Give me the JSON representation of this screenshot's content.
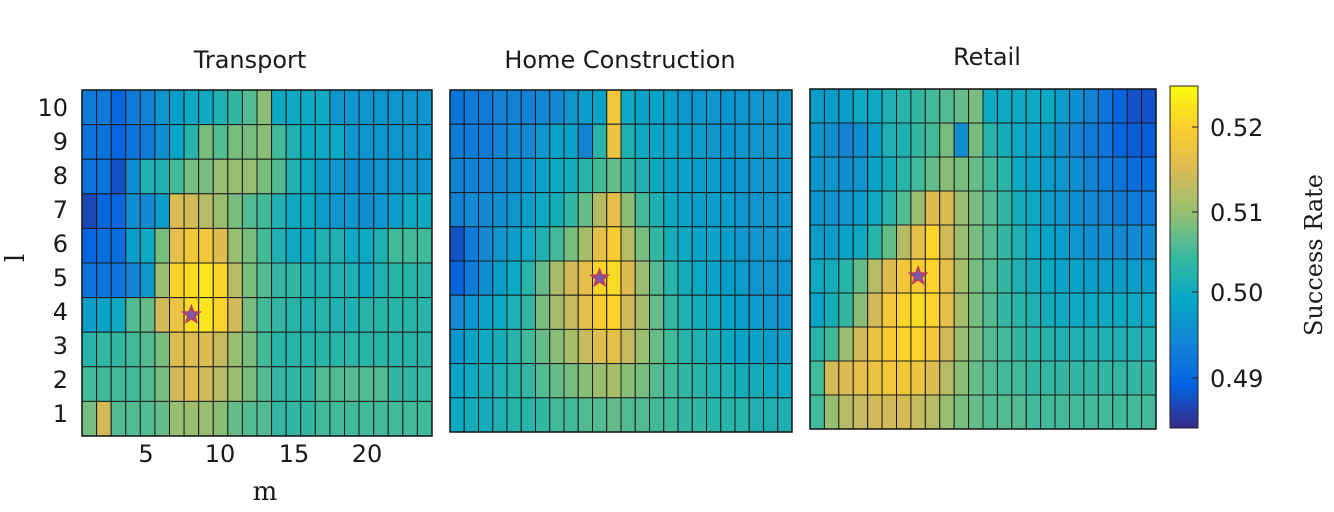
{
  "chart_data": {
    "type": "heatmap",
    "xlabel": "m",
    "ylabel": "l",
    "x_ticks": [
      "5",
      "10",
      "15",
      "20"
    ],
    "y_ticks": [
      "10",
      "9",
      "8",
      "7",
      "6",
      "5",
      "4",
      "3",
      "2",
      "1"
    ],
    "colorbar": {
      "label": "Success Rate",
      "ticks": [
        "0.52",
        "0.51",
        "0.50",
        "0.49"
      ],
      "range": [
        0.4845,
        0.5245
      ],
      "colormap": "parula"
    },
    "panels": [
      {
        "title": "Transport",
        "ncols": 24,
        "nrows": 10,
        "star": {
          "m": 8,
          "l": 4
        },
        "values": [
          [
            0.493,
            0.493,
            0.49,
            0.493,
            0.494,
            0.497,
            0.498,
            0.5,
            0.5,
            0.502,
            0.504,
            0.506,
            0.509,
            0.5,
            0.5,
            0.5,
            0.5,
            0.497,
            0.497,
            0.497,
            0.497,
            0.497,
            0.497,
            0.497
          ],
          [
            0.492,
            0.492,
            0.49,
            0.492,
            0.493,
            0.496,
            0.499,
            0.503,
            0.508,
            0.506,
            0.508,
            0.508,
            0.509,
            0.505,
            0.502,
            0.5,
            0.5,
            0.5,
            0.497,
            0.497,
            0.497,
            0.497,
            0.497,
            0.497
          ],
          [
            0.492,
            0.492,
            0.488,
            0.496,
            0.502,
            0.502,
            0.505,
            0.508,
            0.508,
            0.51,
            0.51,
            0.51,
            0.508,
            0.506,
            0.502,
            0.5,
            0.498,
            0.497,
            0.496,
            0.496,
            0.497,
            0.497,
            0.497,
            0.497
          ],
          [
            0.487,
            0.49,
            0.49,
            0.496,
            0.495,
            0.498,
            0.515,
            0.514,
            0.512,
            0.51,
            0.508,
            0.506,
            0.505,
            0.502,
            0.5,
            0.5,
            0.498,
            0.497,
            0.497,
            0.496,
            0.497,
            0.498,
            0.5,
            0.5
          ],
          [
            0.49,
            0.491,
            0.491,
            0.498,
            0.5,
            0.508,
            0.516,
            0.518,
            0.518,
            0.515,
            0.51,
            0.508,
            0.505,
            0.502,
            0.5,
            0.5,
            0.502,
            0.502,
            0.5,
            0.5,
            0.502,
            0.505,
            0.505,
            0.505
          ],
          [
            0.492,
            0.492,
            0.492,
            0.494,
            0.497,
            0.51,
            0.52,
            0.521,
            0.522,
            0.52,
            0.512,
            0.508,
            0.506,
            0.504,
            0.504,
            0.502,
            0.502,
            0.502,
            0.502,
            0.5,
            0.502,
            0.503,
            0.503,
            0.503
          ],
          [
            0.498,
            0.499,
            0.5,
            0.506,
            0.507,
            0.514,
            0.517,
            0.521,
            0.522,
            0.52,
            0.514,
            0.508,
            0.505,
            0.504,
            0.503,
            0.502,
            0.503,
            0.502,
            0.502,
            0.503,
            0.503,
            0.503,
            0.503,
            0.503
          ],
          [
            0.503,
            0.504,
            0.504,
            0.505,
            0.506,
            0.508,
            0.515,
            0.515,
            0.515,
            0.513,
            0.51,
            0.508,
            0.505,
            0.503,
            0.503,
            0.503,
            0.503,
            0.503,
            0.503,
            0.503,
            0.503,
            0.503,
            0.503,
            0.503
          ],
          [
            0.505,
            0.505,
            0.505,
            0.505,
            0.506,
            0.508,
            0.514,
            0.515,
            0.514,
            0.512,
            0.51,
            0.508,
            0.506,
            0.504,
            0.504,
            0.504,
            0.506,
            0.506,
            0.506,
            0.506,
            0.506,
            0.504,
            0.504,
            0.504
          ],
          [
            0.508,
            0.514,
            0.506,
            0.506,
            0.506,
            0.507,
            0.51,
            0.51,
            0.51,
            0.509,
            0.507,
            0.506,
            0.506,
            0.504,
            0.504,
            0.504,
            0.505,
            0.505,
            0.505,
            0.505,
            0.505,
            0.505,
            0.505,
            0.505
          ]
        ]
      },
      {
        "title": "Home Construction",
        "ncols": 24,
        "nrows": 10,
        "star": {
          "m": 11,
          "l": 5
        },
        "values": [
          [
            0.492,
            0.493,
            0.493,
            0.494,
            0.494,
            0.494,
            0.495,
            0.495,
            0.497,
            0.498,
            0.499,
            0.518,
            0.5,
            0.499,
            0.499,
            0.498,
            0.497,
            0.497,
            0.497,
            0.497,
            0.497,
            0.497,
            0.497,
            0.497
          ],
          [
            0.493,
            0.493,
            0.493,
            0.494,
            0.495,
            0.495,
            0.497,
            0.499,
            0.499,
            0.494,
            0.503,
            0.517,
            0.502,
            0.5,
            0.499,
            0.499,
            0.498,
            0.498,
            0.497,
            0.497,
            0.497,
            0.497,
            0.497,
            0.497
          ],
          [
            0.494,
            0.494,
            0.494,
            0.495,
            0.496,
            0.497,
            0.499,
            0.5,
            0.501,
            0.503,
            0.505,
            0.507,
            0.504,
            0.502,
            0.5,
            0.499,
            0.499,
            0.498,
            0.498,
            0.497,
            0.497,
            0.497,
            0.497,
            0.497
          ],
          [
            0.494,
            0.495,
            0.495,
            0.496,
            0.497,
            0.498,
            0.5,
            0.501,
            0.504,
            0.507,
            0.512,
            0.516,
            0.509,
            0.505,
            0.502,
            0.5,
            0.499,
            0.498,
            0.498,
            0.498,
            0.497,
            0.497,
            0.497,
            0.497
          ],
          [
            0.488,
            0.493,
            0.495,
            0.497,
            0.498,
            0.5,
            0.502,
            0.505,
            0.508,
            0.511,
            0.516,
            0.519,
            0.512,
            0.508,
            0.504,
            0.501,
            0.5,
            0.499,
            0.499,
            0.498,
            0.497,
            0.497,
            0.497,
            0.497
          ],
          [
            0.49,
            0.493,
            0.496,
            0.498,
            0.5,
            0.503,
            0.507,
            0.511,
            0.514,
            0.516,
            0.52,
            0.521,
            0.515,
            0.51,
            0.506,
            0.503,
            0.501,
            0.5,
            0.499,
            0.498,
            0.498,
            0.497,
            0.497,
            0.497
          ],
          [
            0.495,
            0.497,
            0.499,
            0.5,
            0.502,
            0.504,
            0.508,
            0.511,
            0.513,
            0.516,
            0.519,
            0.52,
            0.514,
            0.511,
            0.507,
            0.504,
            0.502,
            0.501,
            0.5,
            0.499,
            0.498,
            0.498,
            0.497,
            0.497
          ],
          [
            0.497,
            0.499,
            0.5,
            0.501,
            0.503,
            0.505,
            0.507,
            0.509,
            0.511,
            0.513,
            0.515,
            0.516,
            0.513,
            0.51,
            0.507,
            0.505,
            0.503,
            0.502,
            0.501,
            0.5,
            0.499,
            0.499,
            0.498,
            0.498
          ],
          [
            0.499,
            0.5,
            0.501,
            0.502,
            0.503,
            0.504,
            0.506,
            0.507,
            0.508,
            0.509,
            0.51,
            0.511,
            0.509,
            0.508,
            0.506,
            0.505,
            0.504,
            0.503,
            0.502,
            0.502,
            0.501,
            0.501,
            0.5,
            0.5
          ],
          [
            0.5,
            0.501,
            0.501,
            0.502,
            0.503,
            0.503,
            0.504,
            0.505,
            0.505,
            0.506,
            0.506,
            0.507,
            0.506,
            0.506,
            0.505,
            0.505,
            0.504,
            0.504,
            0.503,
            0.503,
            0.503,
            0.502,
            0.502,
            0.502
          ]
        ]
      },
      {
        "title": "Retail",
        "ncols": 24,
        "nrows": 10,
        "star": {
          "m": 8,
          "l": 5
        },
        "values": [
          [
            0.498,
            0.498,
            0.498,
            0.5,
            0.5,
            0.502,
            0.503,
            0.504,
            0.505,
            0.506,
            0.507,
            0.508,
            0.5,
            0.5,
            0.5,
            0.5,
            0.5,
            0.498,
            0.496,
            0.494,
            0.492,
            0.49,
            0.488,
            0.488
          ],
          [
            0.497,
            0.496,
            0.494,
            0.496,
            0.498,
            0.502,
            0.502,
            0.504,
            0.505,
            0.508,
            0.496,
            0.508,
            0.503,
            0.501,
            0.5,
            0.499,
            0.498,
            0.496,
            0.494,
            0.493,
            0.492,
            0.49,
            0.489,
            0.489
          ],
          [
            0.497,
            0.497,
            0.496,
            0.497,
            0.499,
            0.501,
            0.503,
            0.505,
            0.507,
            0.509,
            0.508,
            0.507,
            0.505,
            0.503,
            0.5,
            0.499,
            0.498,
            0.497,
            0.496,
            0.494,
            0.493,
            0.492,
            0.491,
            0.491
          ],
          [
            0.497,
            0.497,
            0.497,
            0.498,
            0.5,
            0.503,
            0.506,
            0.51,
            0.515,
            0.515,
            0.51,
            0.508,
            0.506,
            0.504,
            0.501,
            0.5,
            0.498,
            0.497,
            0.496,
            0.495,
            0.494,
            0.493,
            0.493,
            0.493
          ],
          [
            0.498,
            0.498,
            0.499,
            0.5,
            0.503,
            0.507,
            0.512,
            0.516,
            0.52,
            0.514,
            0.51,
            0.508,
            0.506,
            0.504,
            0.502,
            0.5,
            0.499,
            0.498,
            0.497,
            0.496,
            0.496,
            0.495,
            0.495,
            0.495
          ],
          [
            0.5,
            0.501,
            0.503,
            0.507,
            0.512,
            0.515,
            0.518,
            0.519,
            0.52,
            0.516,
            0.511,
            0.508,
            0.506,
            0.504,
            0.502,
            0.501,
            0.5,
            0.499,
            0.499,
            0.498,
            0.498,
            0.498,
            0.498,
            0.498
          ],
          [
            0.499,
            0.501,
            0.504,
            0.509,
            0.514,
            0.518,
            0.52,
            0.521,
            0.52,
            0.516,
            0.511,
            0.508,
            0.506,
            0.504,
            0.503,
            0.502,
            0.501,
            0.5,
            0.5,
            0.5,
            0.5,
            0.5,
            0.5,
            0.5
          ],
          [
            0.503,
            0.505,
            0.51,
            0.514,
            0.517,
            0.519,
            0.52,
            0.52,
            0.518,
            0.514,
            0.51,
            0.508,
            0.506,
            0.505,
            0.504,
            0.503,
            0.503,
            0.502,
            0.502,
            0.502,
            0.502,
            0.502,
            0.502,
            0.502
          ],
          [
            0.505,
            0.514,
            0.515,
            0.516,
            0.517,
            0.518,
            0.518,
            0.517,
            0.515,
            0.512,
            0.509,
            0.507,
            0.506,
            0.505,
            0.505,
            0.504,
            0.504,
            0.504,
            0.504,
            0.504,
            0.504,
            0.504,
            0.504,
            0.504
          ],
          [
            0.505,
            0.51,
            0.512,
            0.513,
            0.514,
            0.514,
            0.514,
            0.513,
            0.512,
            0.51,
            0.508,
            0.507,
            0.506,
            0.506,
            0.506,
            0.505,
            0.505,
            0.505,
            0.505,
            0.505,
            0.505,
            0.505,
            0.505,
            0.505
          ]
        ]
      }
    ]
  }
}
